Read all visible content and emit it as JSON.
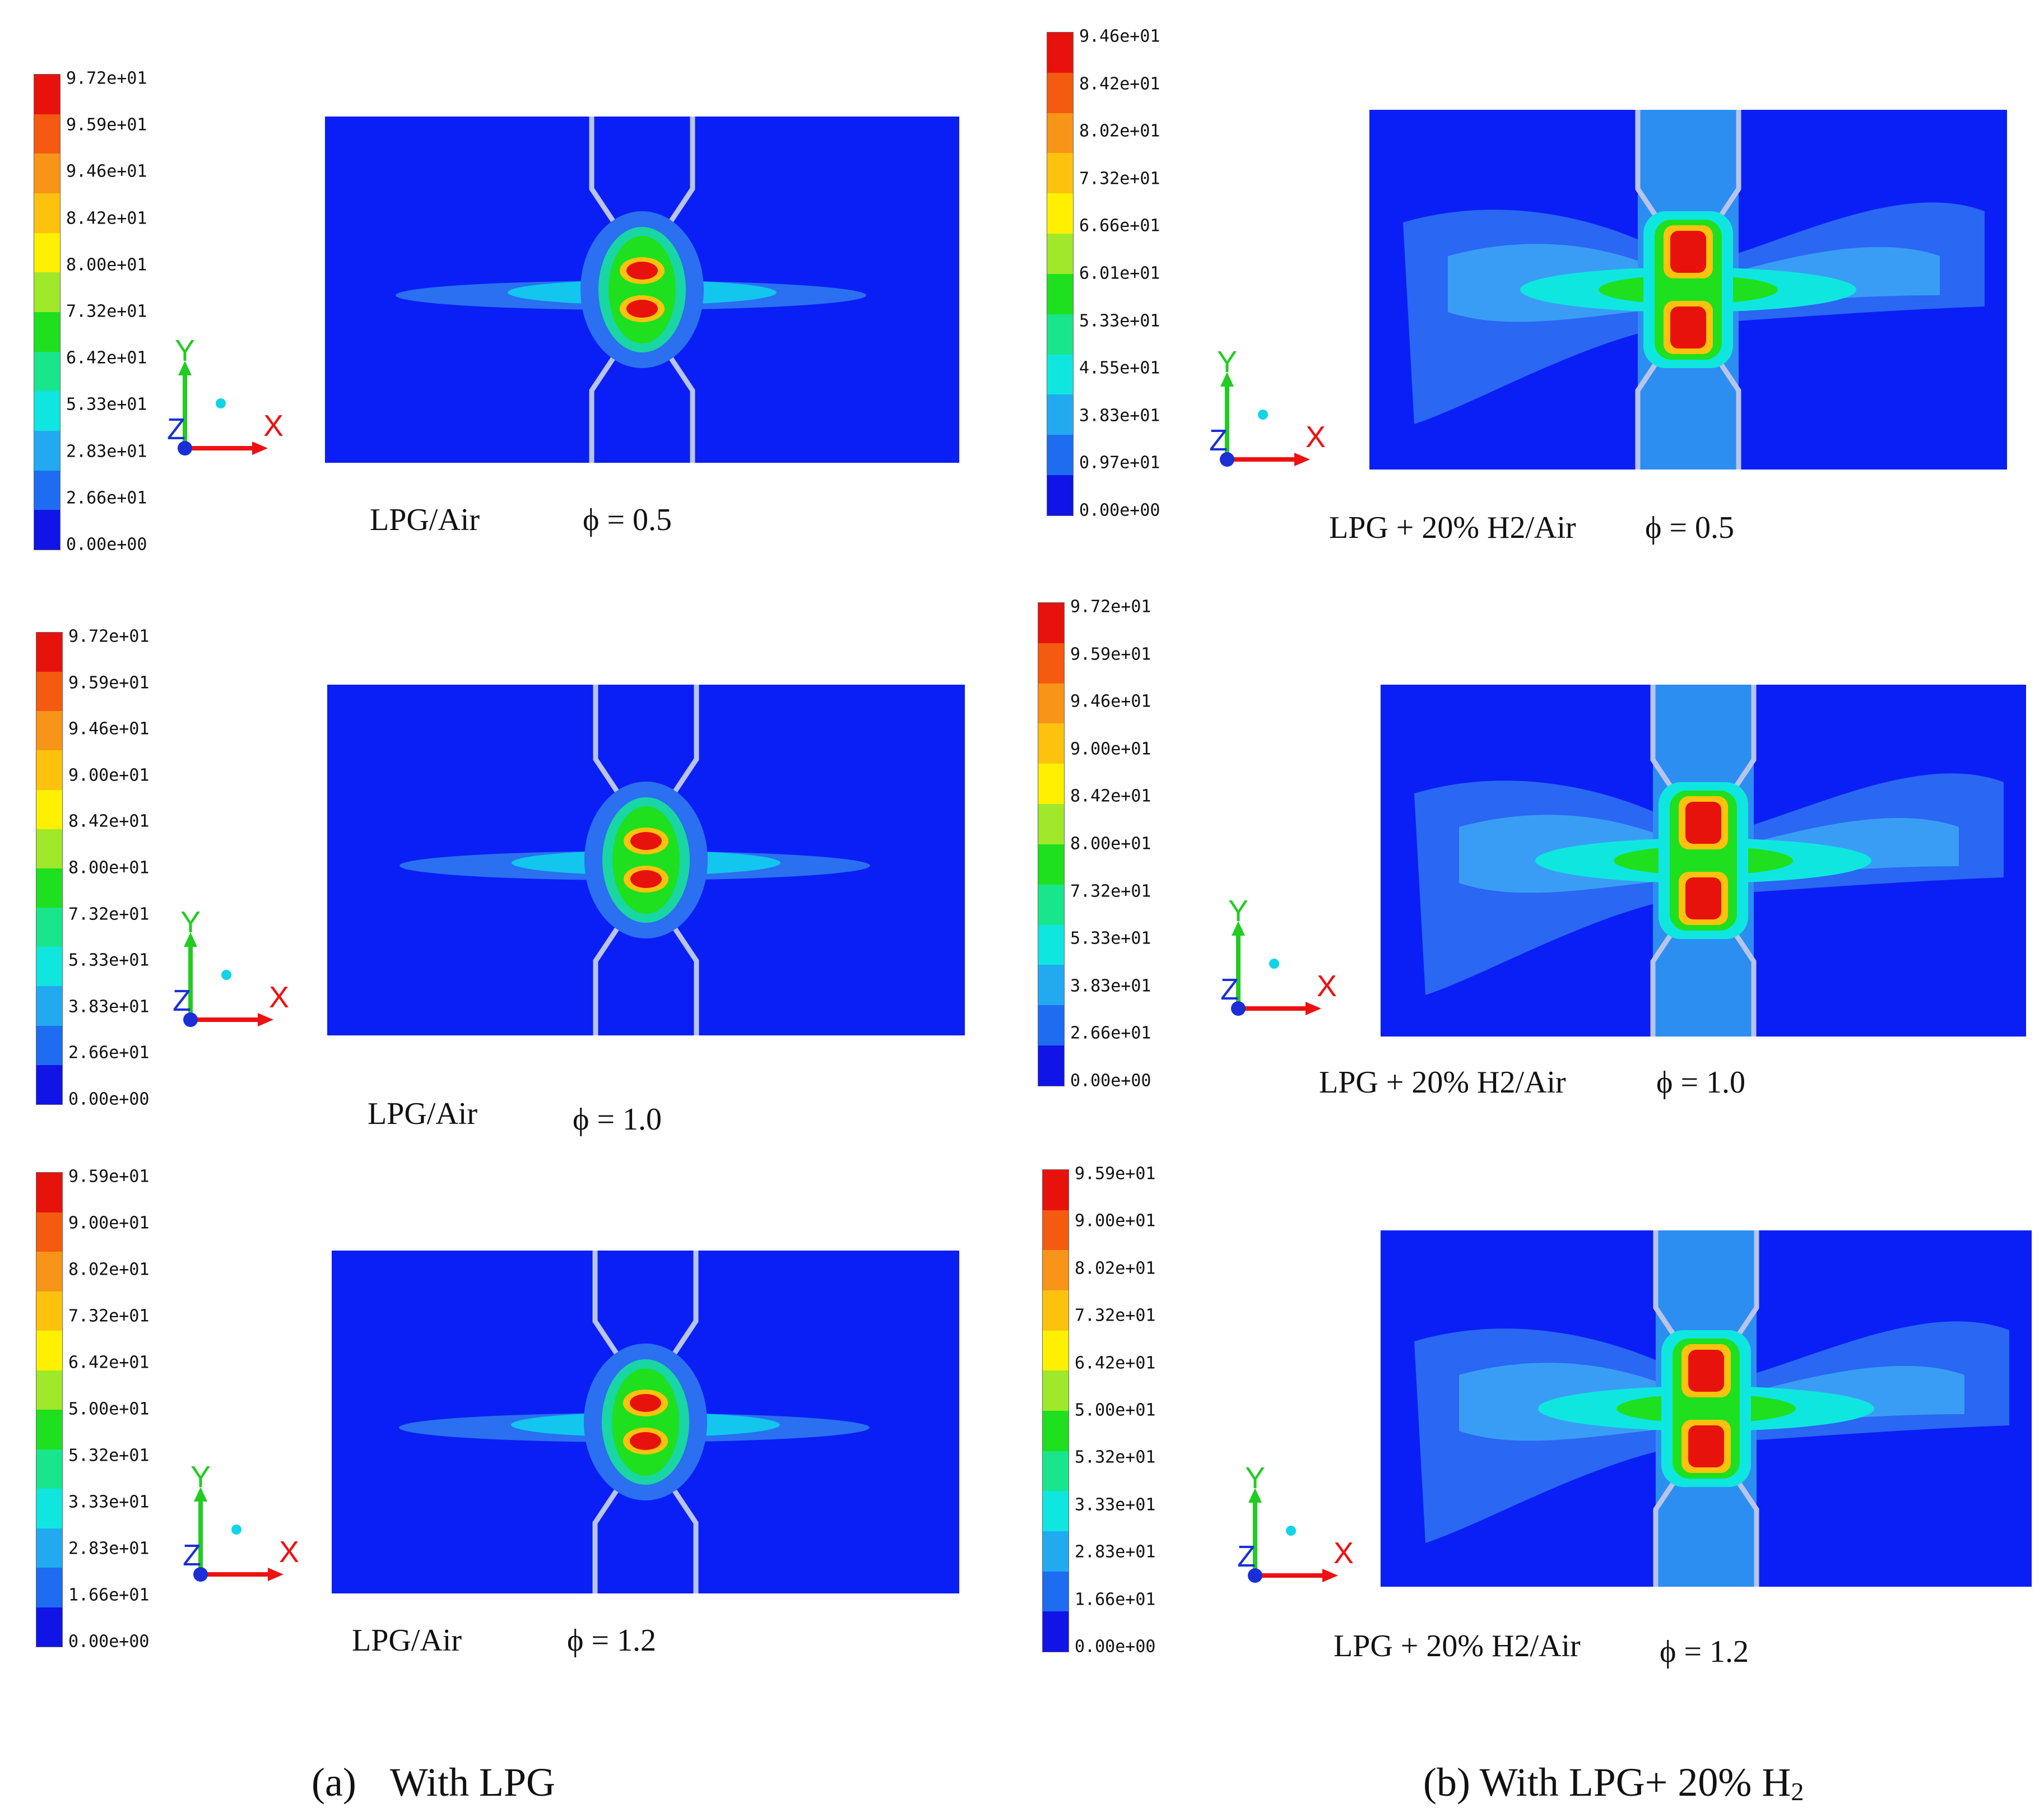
{
  "panels": [
    {
      "caption": "LPG/Air",
      "phi": "ϕ = 0.5",
      "legend": [
        "9.72e+01",
        "9.59e+01",
        "9.46e+01",
        "8.42e+01",
        "8.00e+01",
        "7.32e+01",
        "6.42e+01",
        "5.33e+01",
        "2.83e+01",
        "2.66e+01",
        "0.00e+00"
      ]
    },
    {
      "caption": "LPG + 20% H2/Air",
      "phi": "ϕ = 0.5",
      "legend": [
        "9.46e+01",
        "8.42e+01",
        "8.02e+01",
        "7.32e+01",
        "6.66e+01",
        "6.01e+01",
        "5.33e+01",
        "4.55e+01",
        "3.83e+01",
        "0.97e+01",
        "0.00e+00"
      ]
    },
    {
      "caption": "LPG/Air",
      "phi": "ϕ = 1.0",
      "legend": [
        "9.72e+01",
        "9.59e+01",
        "9.46e+01",
        "9.00e+01",
        "8.42e+01",
        "8.00e+01",
        "7.32e+01",
        "5.33e+01",
        "3.83e+01",
        "2.66e+01",
        "0.00e+00"
      ]
    },
    {
      "caption": "LPG + 20% H2/Air",
      "phi": "ϕ = 1.0",
      "legend": [
        "9.72e+01",
        "9.59e+01",
        "9.46e+01",
        "9.00e+01",
        "8.42e+01",
        "8.00e+01",
        "7.32e+01",
        "5.33e+01",
        "3.83e+01",
        "2.66e+01",
        "0.00e+00"
      ]
    },
    {
      "caption": "LPG/Air",
      "phi": "ϕ = 1.2",
      "legend": [
        "9.59e+01",
        "9.00e+01",
        "8.02e+01",
        "7.32e+01",
        "6.42e+01",
        "5.00e+01",
        "5.32e+01",
        "3.33e+01",
        "2.83e+01",
        "1.66e+01",
        "0.00e+00"
      ]
    },
    {
      "caption": "LPG + 20% H2/Air",
      "phi": "ϕ = 1.2",
      "legend": [
        "9.59e+01",
        "9.00e+01",
        "8.02e+01",
        "7.32e+01",
        "6.42e+01",
        "5.00e+01",
        "5.32e+01",
        "3.33e+01",
        "2.83e+01",
        "1.66e+01",
        "0.00e+00"
      ]
    }
  ],
  "axes": {
    "x": "X",
    "y": "Y",
    "z": "Z"
  },
  "subcaptions": {
    "a_tag": "(a)",
    "a_text": "With LPG",
    "b_text": "(b) With LPG+ 20% H",
    "b_sub": "2"
  },
  "colors": {
    "field_blue": "#0a1ff5",
    "colormap": [
      "#e8120c",
      "#f45a10",
      "#f89418",
      "#fcc20e",
      "#fff000",
      "#9fe82a",
      "#1ee01e",
      "#19e68c",
      "#10e6e0",
      "#22aaf0",
      "#1e6cf0",
      "#1014e6"
    ]
  }
}
